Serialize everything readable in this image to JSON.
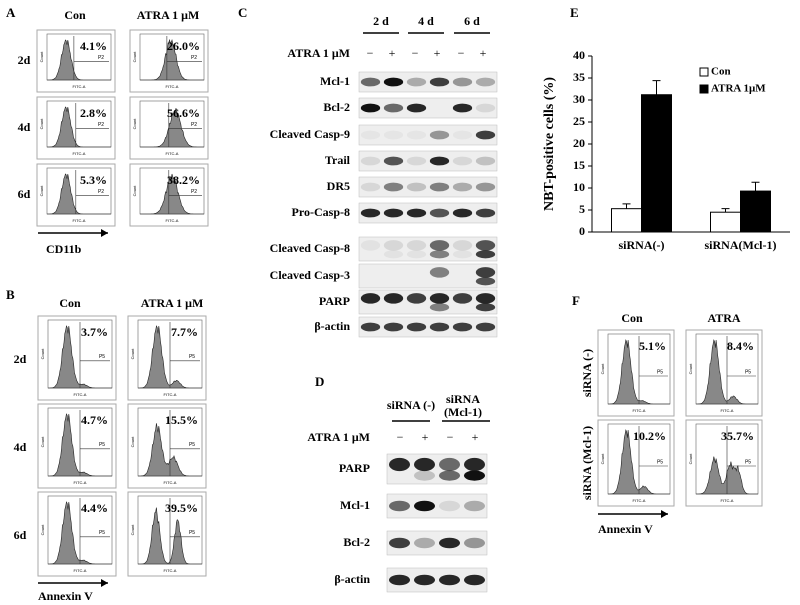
{
  "A": {
    "letter": "A",
    "columns": [
      "Con",
      "ATRA 1 μM"
    ],
    "rows": [
      "2d",
      "4d",
      "6d"
    ],
    "percentages": [
      [
        "4.1%",
        "26.0%"
      ],
      [
        "2.8%",
        "56.6%"
      ],
      [
        "5.3%",
        "38.2%"
      ]
    ],
    "gate": "P2",
    "y_axis": "Count",
    "x_axis": "FITC-A",
    "marker": "CD11b"
  },
  "B": {
    "letter": "B",
    "columns": [
      "Con",
      "ATRA 1 μM"
    ],
    "rows": [
      "2d",
      "4d",
      "6d"
    ],
    "percentages": [
      [
        "3.7%",
        "7.7%"
      ],
      [
        "4.7%",
        "15.5%"
      ],
      [
        "4.4%",
        "39.5%"
      ]
    ],
    "gate": "P5",
    "y_axis": "Count",
    "x_axis": "FITC-A",
    "marker": "Annexin V"
  },
  "C": {
    "letter": "C",
    "timepoints": [
      "2 d",
      "4 d",
      "6 d"
    ],
    "treatment": "ATRA 1 μM",
    "signs": [
      "−",
      "+"
    ],
    "proteins": [
      "Mcl-1",
      "Bcl-2",
      "Cleaved Casp-9",
      "Trail",
      "DR5",
      "Pro-Casp-8",
      "Cleaved Casp-8",
      "Cleaved Casp-3",
      "PARP",
      "β-actin"
    ]
  },
  "D": {
    "letter": "D",
    "groups": [
      [
        "siRNA (-)"
      ],
      [
        "siRNA",
        "(Mcl-1)"
      ]
    ],
    "treatment": "ATRA 1 μM",
    "signs": [
      "−",
      "+"
    ],
    "proteins": [
      "PARP",
      "Mcl-1",
      "Bcl-2",
      "β-actin"
    ]
  },
  "E": {
    "letter": "E",
    "chart_data": {
      "type": "bar",
      "y_label": "NBT-positive cells (%)",
      "categories": [
        "siRNA(-)",
        "siRNA(Mcl-1)"
      ],
      "series": [
        {
          "name": "Con",
          "color": "#ffffff",
          "values": [
            5.3,
            4.5
          ],
          "errors": [
            1.1,
            0.8
          ]
        },
        {
          "name": "ATRA 1μM",
          "color": "#000000",
          "values": [
            31.2,
            9.3
          ],
          "errors": [
            3.2,
            2.0
          ]
        }
      ],
      "ylim": [
        0,
        40
      ],
      "yticks": [
        0,
        5,
        10,
        15,
        20,
        25,
        30,
        35,
        40
      ]
    }
  },
  "F": {
    "letter": "F",
    "columns": [
      "Con",
      "ATRA"
    ],
    "rows": [
      "siRNA (-)",
      "siRNA (Mcl-1)"
    ],
    "percentages": [
      [
        "5.1%",
        "8.4%"
      ],
      [
        "10.2%",
        "35.7%"
      ]
    ],
    "gate": "P5",
    "y_axis": "Count",
    "x_axis": "FITC-A",
    "marker": "Annexin V"
  }
}
